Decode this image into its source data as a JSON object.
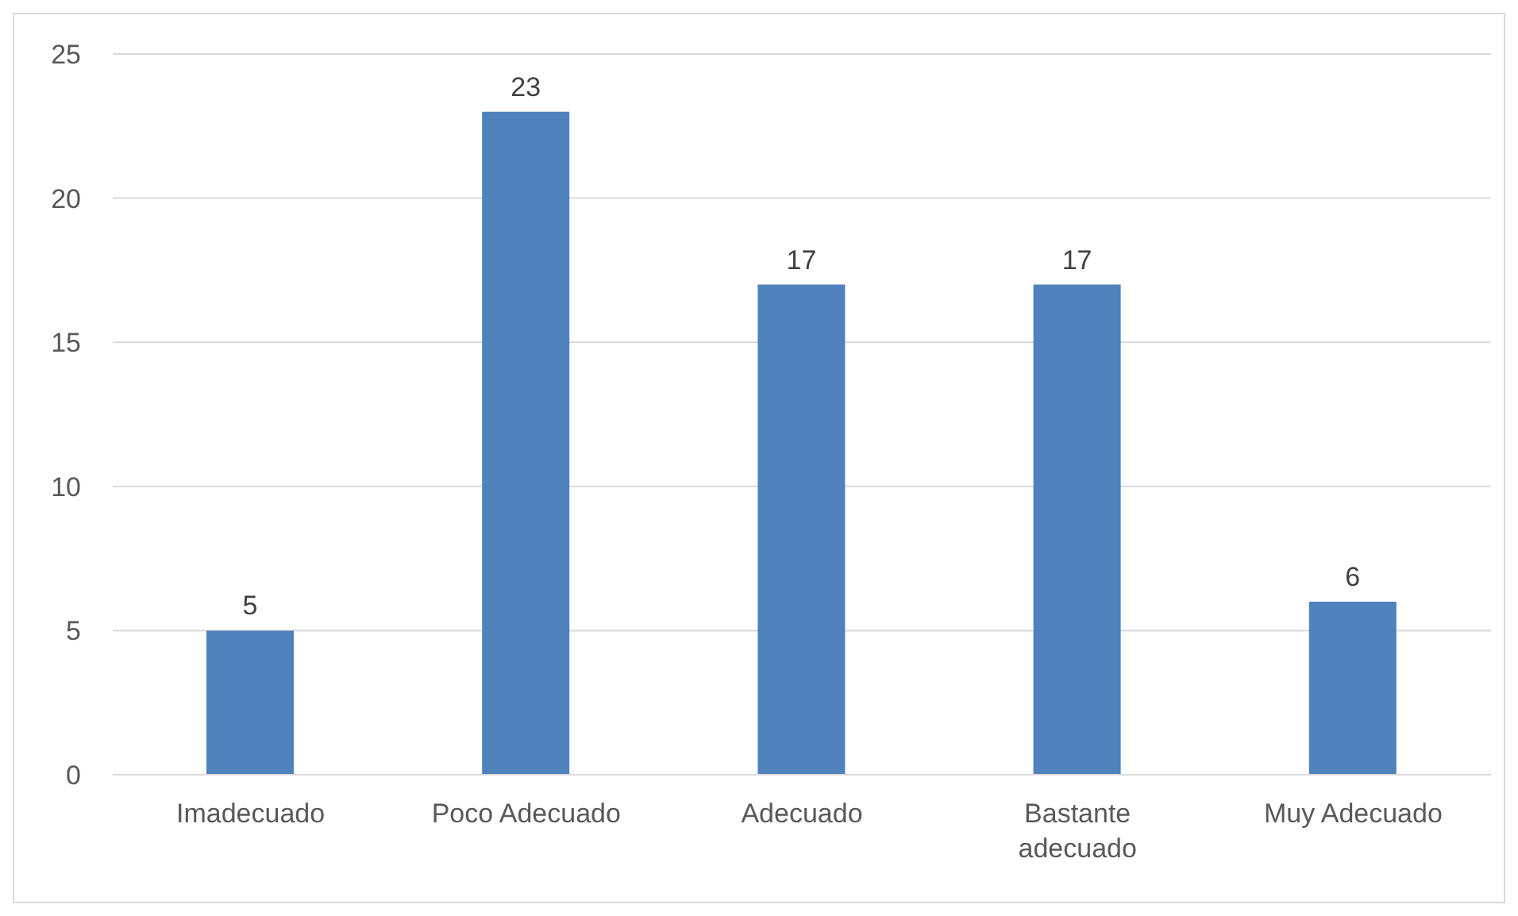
{
  "chart_data": {
    "type": "bar",
    "categories": [
      "Imadecuado",
      "Poco Adecuado",
      "Adecuado",
      "Bastante adecuado",
      "Muy Adecuado"
    ],
    "values": [
      5,
      23,
      17,
      17,
      6
    ],
    "color": "#4f81bd",
    "ylim": [
      0,
      25
    ],
    "yticks": [
      0,
      5,
      10,
      15,
      20,
      25
    ],
    "grid": "y",
    "data_labels": true
  }
}
